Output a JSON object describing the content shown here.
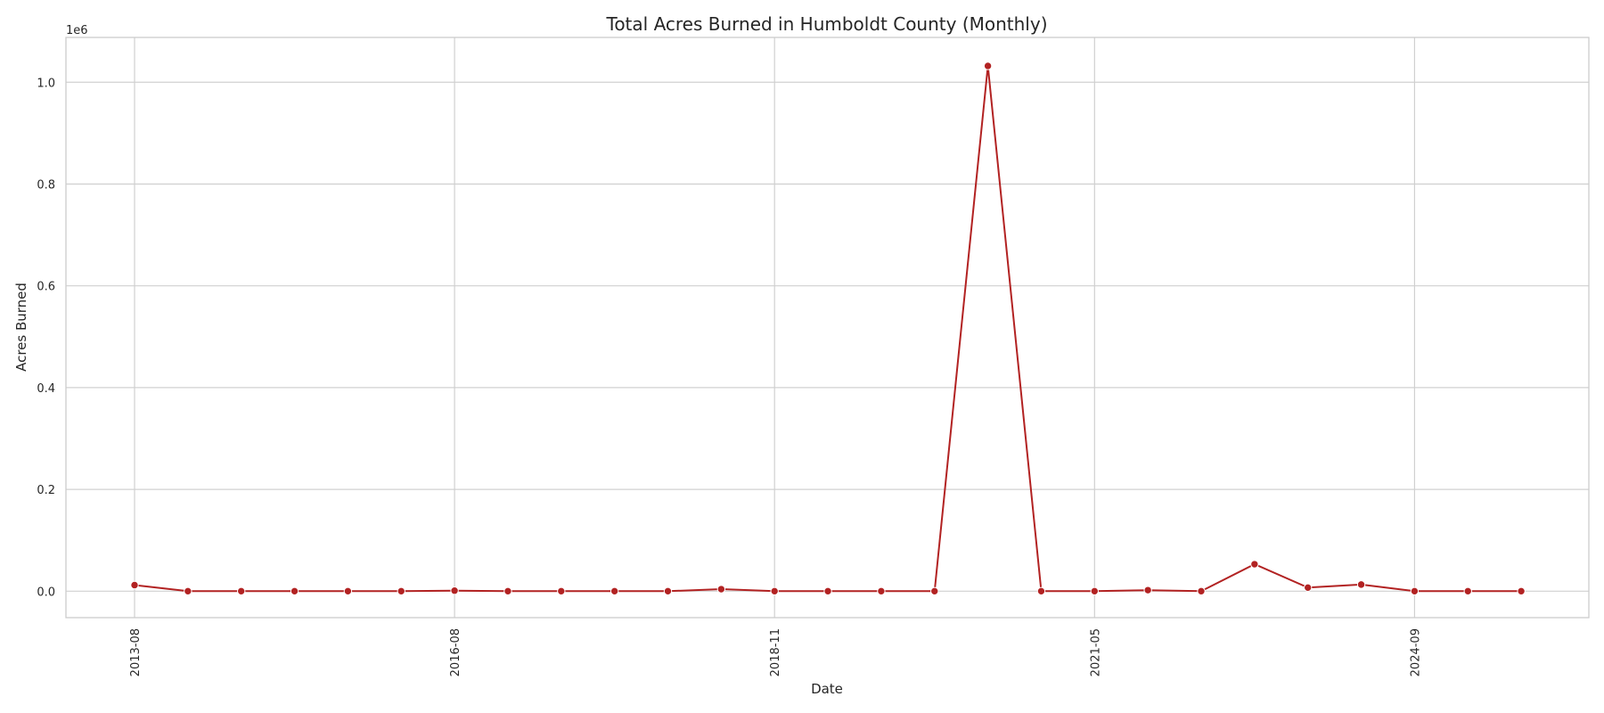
{
  "chart_data": {
    "type": "line",
    "title": "Total Acres Burned in Humboldt County (Monthly)",
    "xlabel": "Date",
    "ylabel": "Acres Burned",
    "y_multiplier_label": "1e6",
    "x_tick_labels": [
      "2013-08",
      "2016-08",
      "2018-11",
      "2021-05",
      "2024-09"
    ],
    "y_tick_labels": [
      "0.0",
      "0.2",
      "0.4",
      "0.6",
      "0.8",
      "1.0"
    ],
    "ylim": [
      -0.052,
      1.088
    ],
    "grid": true,
    "color": "#b22222",
    "series": [
      {
        "values": [
          0.012,
          0.0,
          0.0,
          0.0,
          0.0,
          0.0,
          0.001,
          0.0,
          0.0,
          0.0,
          0.0,
          0.004,
          0.0,
          0.0,
          0.0,
          0.0,
          1.032,
          0.0,
          0.0,
          0.002,
          0.0,
          0.053,
          0.007,
          0.013,
          0.0,
          0.0,
          0.0
        ]
      }
    ]
  }
}
